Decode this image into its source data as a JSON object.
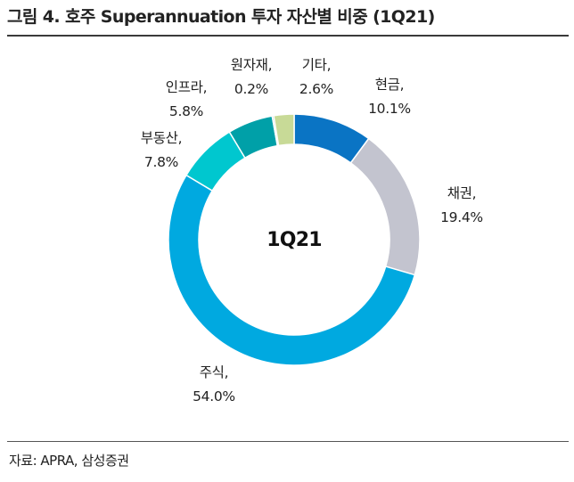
{
  "title": "그림 4. 호주 Superannuation 투자 자산별 비중 (1Q21)",
  "source": "자료: APRA, 삼성증권",
  "chart_data": {
    "type": "pie",
    "variant": "donut",
    "center_label": "1Q21",
    "unit": "%",
    "slices": [
      {
        "name": "현금",
        "value": 10.1,
        "label": "10.1%",
        "color": "#0a74c4"
      },
      {
        "name": "채권",
        "value": 19.4,
        "label": "19.4%",
        "color": "#c3c4cf"
      },
      {
        "name": "주식",
        "value": 54.0,
        "label": "54.0%",
        "color": "#00a9e0"
      },
      {
        "name": "부동산",
        "value": 7.8,
        "label": "7.8%",
        "color": "#00c7cf"
      },
      {
        "name": "인프라",
        "value": 5.8,
        "label": "5.8%",
        "color": "#00a0a8"
      },
      {
        "name": "원자재",
        "value": 0.2,
        "label": "0.2%",
        "color": "#5a7f8e"
      },
      {
        "name": "기타",
        "value": 2.6,
        "label": "2.6%",
        "color": "#c8da97"
      }
    ]
  }
}
